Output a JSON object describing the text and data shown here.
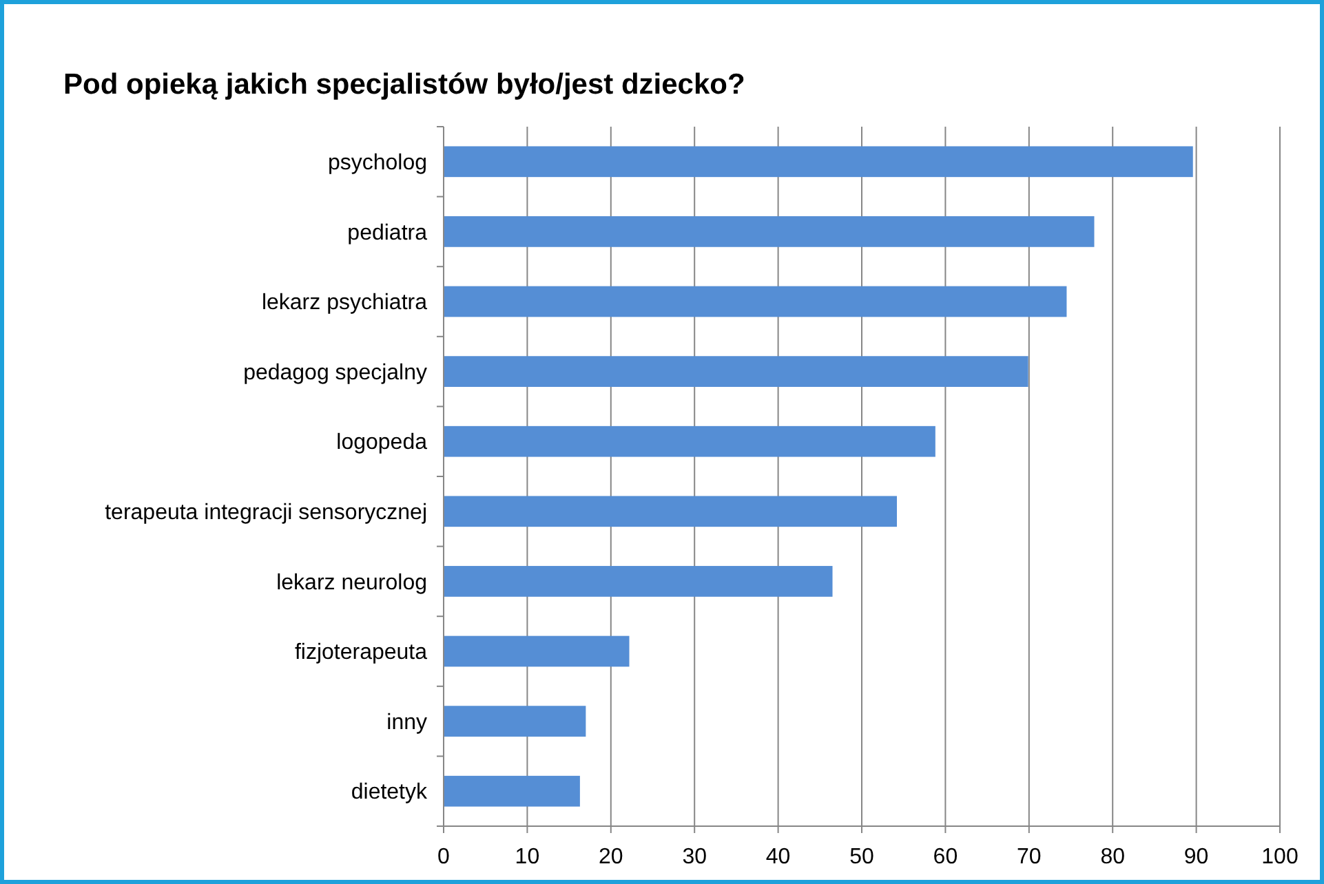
{
  "chart_data": {
    "type": "bar",
    "orientation": "horizontal",
    "title": "Pod opieką jakich specjalistów było/jest dziecko?",
    "categories": [
      "psycholog",
      "pediatra",
      "lekarz psychiatra",
      "pedagog specjalny",
      "logopeda",
      "terapeuta integracji sensorycznej",
      "lekarz neurolog",
      "fizjoterapeuta",
      "inny",
      "dietetyk"
    ],
    "values": [
      89.6,
      77.8,
      74.5,
      69.9,
      58.8,
      54.2,
      46.5,
      22.2,
      17.0,
      16.3
    ],
    "color": "#558ed5",
    "xlim": [
      0,
      100
    ],
    "xticks": [
      0,
      10,
      20,
      30,
      40,
      50,
      60,
      70,
      80,
      90,
      100
    ],
    "grid": "x"
  }
}
